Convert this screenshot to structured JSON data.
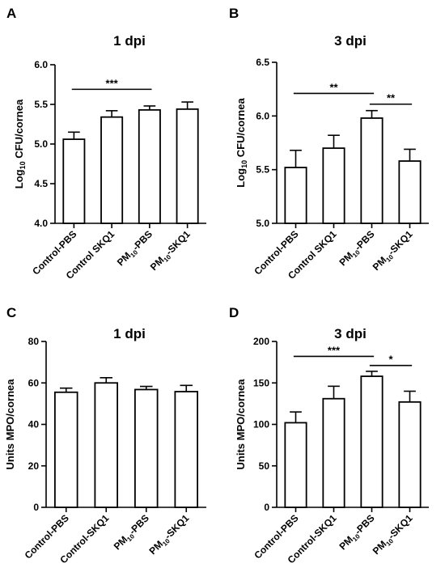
{
  "panels": [
    {
      "letter": "A"
    },
    {
      "letter": "B"
    },
    {
      "letter": "C"
    },
    {
      "letter": "D"
    }
  ],
  "chart_data": [
    {
      "type": "bar",
      "title": "1 dpi",
      "ylabel_prefix": "Log",
      "ylabel_sub": "10",
      "ylabel_suffix": " CFU/cornea",
      "categories": [
        {
          "pre": "Control-PBS"
        },
        {
          "pre": "Control SKQ1"
        },
        {
          "pre": "PM",
          "sub": "10",
          "post": "-PBS"
        },
        {
          "pre": "PM",
          "sub": "10",
          "post": "-SKQ1"
        }
      ],
      "values": [
        5.06,
        5.34,
        5.43,
        5.44
      ],
      "errors": [
        0.09,
        0.08,
        0.05,
        0.09
      ],
      "ylim": [
        4.0,
        6.0
      ],
      "yticks": [
        "4.0",
        "4.5",
        "5.0",
        "5.5",
        "6.0"
      ],
      "significance": [
        {
          "from": 0,
          "to": 2,
          "label": "***",
          "y": 5.69
        }
      ]
    },
    {
      "type": "bar",
      "title": "3 dpi",
      "ylabel_prefix": "Log",
      "ylabel_sub": "10",
      "ylabel_suffix": " CFU/cornea",
      "categories": [
        {
          "pre": "Control-PBS"
        },
        {
          "pre": "Control SKQ1"
        },
        {
          "pre": "PM",
          "sub": "10",
          "post": "-PBS"
        },
        {
          "pre": "PM",
          "sub": "10",
          "post": "-SKQ1"
        }
      ],
      "values": [
        5.52,
        5.7,
        5.98,
        5.58
      ],
      "errors": [
        0.16,
        0.12,
        0.07,
        0.11
      ],
      "ylim": [
        5.0,
        6.5
      ],
      "yticks": [
        "5.0",
        "5.5",
        "6.0",
        "6.5"
      ],
      "significance": [
        {
          "from": 0,
          "to": 2,
          "label": "**",
          "y": 6.21
        },
        {
          "from": 2,
          "to": 3,
          "label": "**",
          "y": 6.11
        }
      ]
    },
    {
      "type": "bar",
      "title": "1 dpi",
      "ylabel_prefix": "Units MPO/cornea",
      "ylabel_sub": "",
      "ylabel_suffix": "",
      "categories": [
        {
          "pre": "Control-PBS"
        },
        {
          "pre": "Control-SKQ1"
        },
        {
          "pre": "PM",
          "sub": "10",
          "post": "-PBS"
        },
        {
          "pre": "PM",
          "sub": "10",
          "post": "-SKQ1"
        }
      ],
      "values": [
        55.5,
        60.0,
        56.8,
        55.8
      ],
      "errors": [
        2.0,
        2.5,
        1.5,
        3.0
      ],
      "ylim": [
        0,
        80
      ],
      "yticks": [
        "0",
        "20",
        "40",
        "60",
        "80"
      ],
      "significance": []
    },
    {
      "type": "bar",
      "title": "3 dpi",
      "ylabel_prefix": "Units MPO/cornea",
      "ylabel_sub": "",
      "ylabel_suffix": "",
      "categories": [
        {
          "pre": "Control-PBS"
        },
        {
          "pre": "Control-SKQ1"
        },
        {
          "pre": "PM",
          "sub": "10",
          "post": "-PBS"
        },
        {
          "pre": "PM",
          "sub": "10",
          "post": "-SKQ1"
        }
      ],
      "values": [
        102,
        131,
        158,
        127
      ],
      "errors": [
        13,
        15,
        6,
        13
      ],
      "ylim": [
        0,
        200
      ],
      "yticks": [
        "0",
        "50",
        "100",
        "150",
        "200"
      ],
      "significance": [
        {
          "from": 0,
          "to": 2,
          "label": "***",
          "y": 182
        },
        {
          "from": 2,
          "to": 3,
          "label": "*",
          "y": 171
        }
      ]
    }
  ]
}
